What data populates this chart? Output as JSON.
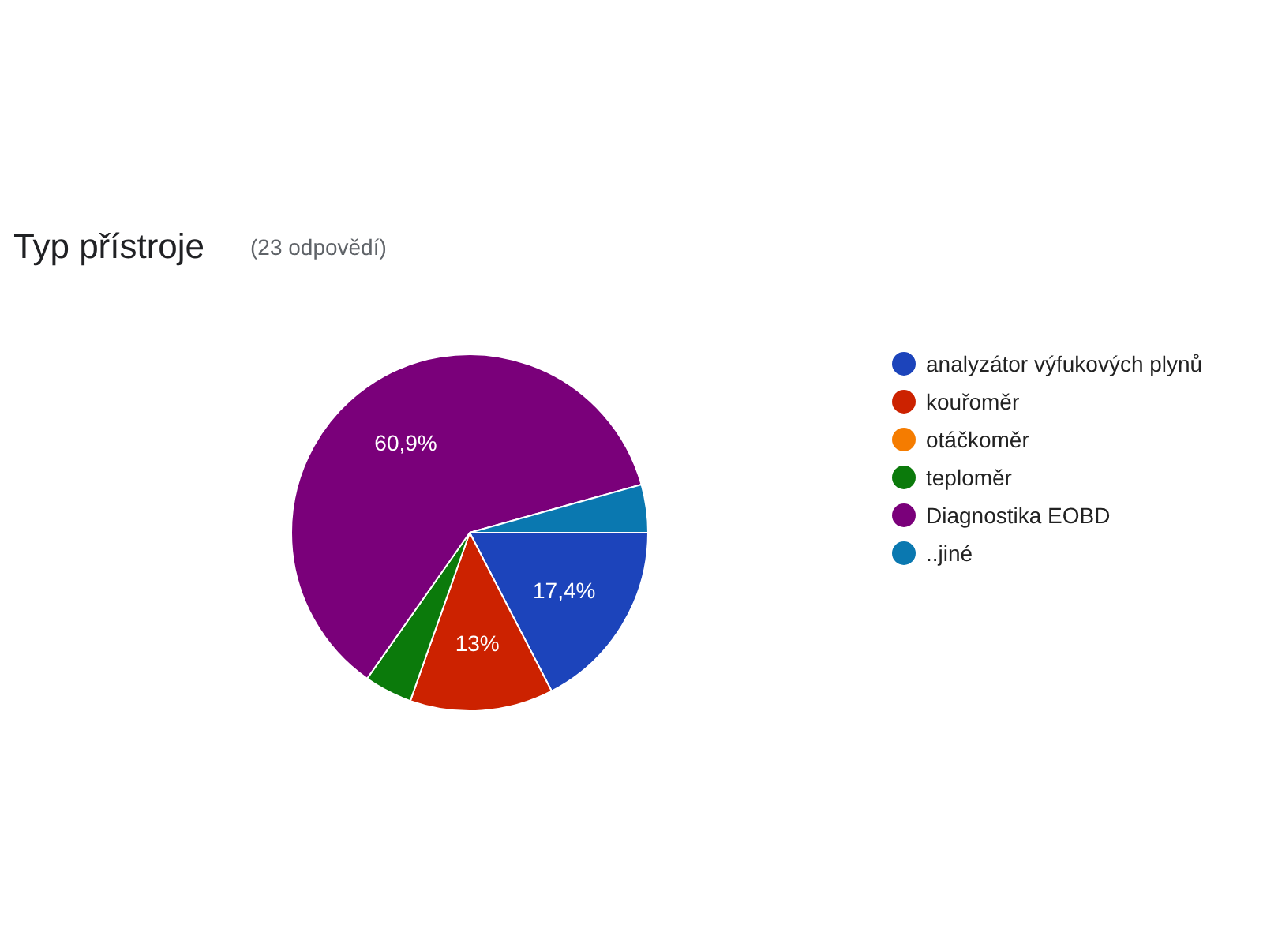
{
  "chart_data": {
    "type": "pie",
    "title": "Typ přístroje",
    "subtitle": "(23 odpovědí)",
    "categories": [
      "analyzátor výfukových plynů",
      "kouřoměr",
      "otáčkoměr",
      "teploměr",
      "Diagnostika EOBD",
      "..jiné"
    ],
    "values": [
      17.4,
      13,
      0,
      4.35,
      60.9,
      4.35
    ],
    "value_labels": [
      "17,4%",
      "13%",
      null,
      null,
      "60,9%",
      null
    ],
    "colors": [
      "#1c44bb",
      "#cc2200",
      "#f57c00",
      "#0b7a0b",
      "#7a007a",
      "#0a78b0"
    ],
    "legend": "right"
  }
}
